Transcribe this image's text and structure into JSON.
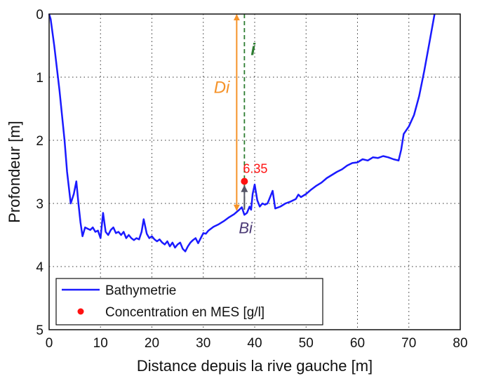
{
  "chart_data": {
    "type": "line",
    "xlabel": "Distance depuis la rive gauche [m]",
    "ylabel": "Profondeur [m]",
    "xlim": [
      0,
      80
    ],
    "ylim": [
      0,
      5
    ],
    "y_inverted": true,
    "grid": true,
    "xticks": [
      "0",
      "10",
      "20",
      "30",
      "40",
      "50",
      "60",
      "70",
      "80"
    ],
    "yticks": [
      "0",
      "1",
      "2",
      "3",
      "4",
      "5"
    ],
    "legend": {
      "position": "bottom-left",
      "entries": [
        "Bathymetrie",
        "Concentration en MES [g/l]"
      ]
    },
    "series": [
      {
        "name": "Bathymetrie",
        "color": "#1a1aff",
        "points": [
          [
            0.0,
            0.0
          ],
          [
            0.3,
            0.08
          ],
          [
            1.0,
            0.5
          ],
          [
            2.0,
            1.2
          ],
          [
            3.0,
            2.0
          ],
          [
            3.5,
            2.5
          ],
          [
            4.2,
            3.0
          ],
          [
            4.8,
            2.85
          ],
          [
            5.3,
            2.65
          ],
          [
            5.7,
            3.0
          ],
          [
            6.1,
            3.3
          ],
          [
            6.5,
            3.52
          ],
          [
            7.0,
            3.38
          ],
          [
            7.5,
            3.4
          ],
          [
            8.0,
            3.42
          ],
          [
            8.5,
            3.38
          ],
          [
            9.0,
            3.45
          ],
          [
            9.5,
            3.43
          ],
          [
            10.0,
            3.55
          ],
          [
            10.5,
            3.15
          ],
          [
            11.0,
            3.45
          ],
          [
            11.5,
            3.5
          ],
          [
            12.0,
            3.42
          ],
          [
            12.5,
            3.38
          ],
          [
            13.0,
            3.47
          ],
          [
            13.5,
            3.45
          ],
          [
            14.0,
            3.5
          ],
          [
            14.5,
            3.45
          ],
          [
            15.0,
            3.55
          ],
          [
            15.5,
            3.5
          ],
          [
            16.0,
            3.55
          ],
          [
            16.5,
            3.58
          ],
          [
            17.0,
            3.55
          ],
          [
            17.5,
            3.57
          ],
          [
            18.0,
            3.45
          ],
          [
            18.4,
            3.25
          ],
          [
            19.0,
            3.48
          ],
          [
            19.5,
            3.55
          ],
          [
            20.0,
            3.52
          ],
          [
            20.5,
            3.57
          ],
          [
            21.0,
            3.6
          ],
          [
            21.5,
            3.57
          ],
          [
            22.0,
            3.62
          ],
          [
            22.5,
            3.65
          ],
          [
            23.0,
            3.6
          ],
          [
            23.5,
            3.68
          ],
          [
            24.0,
            3.62
          ],
          [
            24.5,
            3.7
          ],
          [
            25.0,
            3.65
          ],
          [
            25.5,
            3.62
          ],
          [
            26.0,
            3.72
          ],
          [
            26.5,
            3.76
          ],
          [
            27.0,
            3.68
          ],
          [
            27.5,
            3.62
          ],
          [
            28.0,
            3.58
          ],
          [
            28.5,
            3.55
          ],
          [
            29.0,
            3.63
          ],
          [
            29.5,
            3.55
          ],
          [
            30.0,
            3.47
          ],
          [
            30.5,
            3.48
          ],
          [
            31.0,
            3.43
          ],
          [
            31.5,
            3.4
          ],
          [
            32.0,
            3.37
          ],
          [
            33.0,
            3.33
          ],
          [
            34.0,
            3.28
          ],
          [
            35.0,
            3.22
          ],
          [
            36.0,
            3.17
          ],
          [
            37.0,
            3.1
          ],
          [
            37.5,
            3.06
          ],
          [
            38.0,
            3.18
          ],
          [
            38.5,
            3.15
          ],
          [
            39.0,
            3.05
          ],
          [
            39.3,
            3.1
          ],
          [
            39.6,
            2.85
          ],
          [
            40.0,
            2.7
          ],
          [
            40.5,
            2.95
          ],
          [
            41.0,
            3.05
          ],
          [
            41.5,
            3.0
          ],
          [
            42.0,
            3.02
          ],
          [
            42.5,
            3.0
          ],
          [
            43.0,
            2.9
          ],
          [
            43.5,
            2.8
          ],
          [
            44.0,
            3.08
          ],
          [
            45.0,
            3.05
          ],
          [
            46.0,
            3.0
          ],
          [
            47.0,
            2.97
          ],
          [
            48.0,
            2.93
          ],
          [
            48.5,
            2.86
          ],
          [
            49.0,
            2.9
          ],
          [
            50.0,
            2.85
          ],
          [
            51.0,
            2.78
          ],
          [
            52.0,
            2.72
          ],
          [
            53.0,
            2.67
          ],
          [
            54.0,
            2.6
          ],
          [
            55.0,
            2.55
          ],
          [
            56.0,
            2.5
          ],
          [
            57.0,
            2.46
          ],
          [
            58.0,
            2.4
          ],
          [
            59.0,
            2.36
          ],
          [
            60.0,
            2.35
          ],
          [
            61.0,
            2.3
          ],
          [
            62.0,
            2.32
          ],
          [
            63.0,
            2.27
          ],
          [
            64.0,
            2.28
          ],
          [
            65.0,
            2.25
          ],
          [
            66.0,
            2.27
          ],
          [
            67.0,
            2.3
          ],
          [
            68.0,
            2.32
          ],
          [
            68.5,
            2.15
          ],
          [
            69.0,
            1.9
          ],
          [
            70.0,
            1.78
          ],
          [
            71.0,
            1.6
          ],
          [
            72.0,
            1.3
          ],
          [
            73.0,
            0.9
          ],
          [
            74.0,
            0.45
          ],
          [
            75.0,
            0.0
          ]
        ]
      },
      {
        "name": "Concentration en MES [g/l]",
        "color": "#ff1111",
        "points": [
          [
            38.0,
            2.65
          ]
        ],
        "labels": [
          "6.35"
        ]
      }
    ],
    "annotations": [
      {
        "type": "vertical-dashed-line",
        "label": "i",
        "x": 38.0,
        "y_from": 0.0,
        "y_to": 3.1,
        "color": "#2e7d32"
      },
      {
        "type": "double-arrow",
        "label": "Di",
        "x": 36.5,
        "y_from": 0.0,
        "y_to": 3.12,
        "color": "#f5932a"
      },
      {
        "type": "arrow",
        "label": "Bi",
        "x": 38.0,
        "y_from": 3.1,
        "y_to": 2.72,
        "color": "#555566"
      }
    ]
  }
}
